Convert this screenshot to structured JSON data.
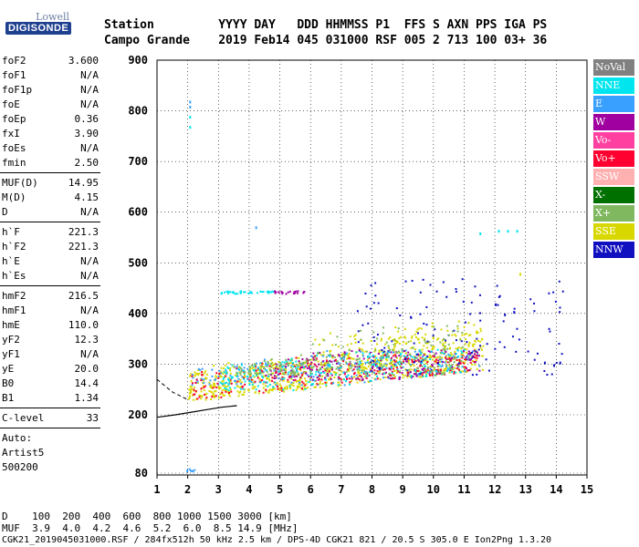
{
  "logo": {
    "top": "Lowell",
    "main": "DIGISONDE"
  },
  "header": {
    "line1": "Station         YYYY DAY   DDD HHMMSS P1  FFS S AXN PPS IGA PS",
    "line2": "Campo Grande    2019 Feb14 045 031000 RSF 005 2 713 100 03+ 36"
  },
  "params_group1": [
    {
      "label": "foF2",
      "value": "3.600"
    },
    {
      "label": "foF1",
      "value": "N/A"
    },
    {
      "label": "foF1p",
      "value": "N/A"
    },
    {
      "label": "foE",
      "value": "N/A"
    },
    {
      "label": "foEp",
      "value": "0.36"
    },
    {
      "label": "fxI",
      "value": "3.90"
    },
    {
      "label": "foEs",
      "value": "N/A"
    },
    {
      "label": "fmin",
      "value": "2.50"
    }
  ],
  "params_group2": [
    {
      "label": "MUF(D)",
      "value": "14.95"
    },
    {
      "label": "M(D)",
      "value": "4.15"
    },
    {
      "label": "D",
      "value": "N/A"
    }
  ],
  "params_group3": [
    {
      "label": "h`F",
      "value": "221.3"
    },
    {
      "label": "h`F2",
      "value": "221.3"
    },
    {
      "label": "h`E",
      "value": "N/A"
    },
    {
      "label": "h`Es",
      "value": "N/A"
    }
  ],
  "params_group4": [
    {
      "label": "hmF2",
      "value": "216.5"
    },
    {
      "label": "hmF1",
      "value": "N/A"
    },
    {
      "label": "hmE",
      "value": "110.0"
    },
    {
      "label": "yF2",
      "value": "12.3"
    },
    {
      "label": "yF1",
      "value": "N/A"
    },
    {
      "label": "yE",
      "value": "20.0"
    },
    {
      "label": "B0",
      "value": "14.4"
    },
    {
      "label": "B1",
      "value": "1.34"
    }
  ],
  "params_group5": [
    {
      "label": "C-level",
      "value": "33"
    }
  ],
  "autoscale": {
    "line1": "Auto:",
    "line2": "Artist5",
    "line3": "500200"
  },
  "legend": [
    {
      "label": "NoVal",
      "color": "#808080"
    },
    {
      "label": "NNE",
      "color": "#00e5ee"
    },
    {
      "label": "E",
      "color": "#3aa0ff"
    },
    {
      "label": "W",
      "color": "#a000a0"
    },
    {
      "label": "Vo-",
      "color": "#ff40a0"
    },
    {
      "label": "Vo+",
      "color": "#ff0030"
    },
    {
      "label": "SSW",
      "color": "#ffb0b0"
    },
    {
      "label": "X-",
      "color": "#007000"
    },
    {
      "label": "X+",
      "color": "#80b860"
    },
    {
      "label": "SSE",
      "color": "#d8d800"
    },
    {
      "label": "NNW",
      "color": "#1010c0"
    }
  ],
  "footer": {
    "line1": "D    100  200  400  600  800 1000 1500 3000 [km]",
    "line2": "MUF  3.9  4.0  4.2  4.6  5.2  6.0  8.5 14.9 [MHz]",
    "line3": "CGK21_2019045031000.RSF / 284fx512h 50 kHz 2.5 km / DPS-4D CGK21 821 / 20.5 S 305.0 E Ion2Png 1.3.20"
  },
  "chart_data": {
    "type": "scatter",
    "x_ticks": [
      1,
      2,
      3,
      4,
      5,
      6,
      7,
      8,
      9,
      10,
      11,
      12,
      13,
      14,
      15
    ],
    "y_ticks": [
      80,
      200,
      300,
      400,
      500,
      600,
      700,
      800,
      900
    ],
    "xlim": [
      1,
      15
    ],
    "ylim": [
      80,
      900
    ],
    "grid": true,
    "trace_curve": {
      "x": [
        1.0,
        1.6,
        2.1,
        2.6,
        3.1,
        3.6
      ],
      "y": [
        195,
        200,
        205,
        210,
        215,
        218
      ]
    },
    "series": [
      {
        "name": "SSE",
        "color": "#d8d800",
        "x_range": [
          2.0,
          11.6
        ],
        "y_range": [
          230,
          390
        ]
      },
      {
        "name": "E",
        "color": "#3aa0ff",
        "x_range": [
          2.1,
          11.5
        ],
        "y_range": [
          260,
          330
        ]
      },
      {
        "name": "W",
        "color": "#a000a0",
        "x_range": [
          4.5,
          11.5
        ],
        "y_range": [
          270,
          330
        ]
      },
      {
        "name": "Vo+",
        "color": "#ff0030",
        "x_range": [
          2.1,
          11.4
        ],
        "y_range": [
          230,
          320
        ]
      },
      {
        "name": "NNE",
        "color": "#00e5ee",
        "x_range": [
          3.0,
          11.0
        ],
        "y_range": [
          250,
          330
        ]
      },
      {
        "name": "NNW",
        "color": "#1010c0",
        "x_range": [
          7.5,
          14.2
        ],
        "y_range": [
          280,
          470
        ]
      },
      {
        "name": "X+",
        "color": "#80b860",
        "x_range": [
          3.5,
          11.0
        ],
        "y_range": [
          280,
          400
        ]
      }
    ]
  }
}
